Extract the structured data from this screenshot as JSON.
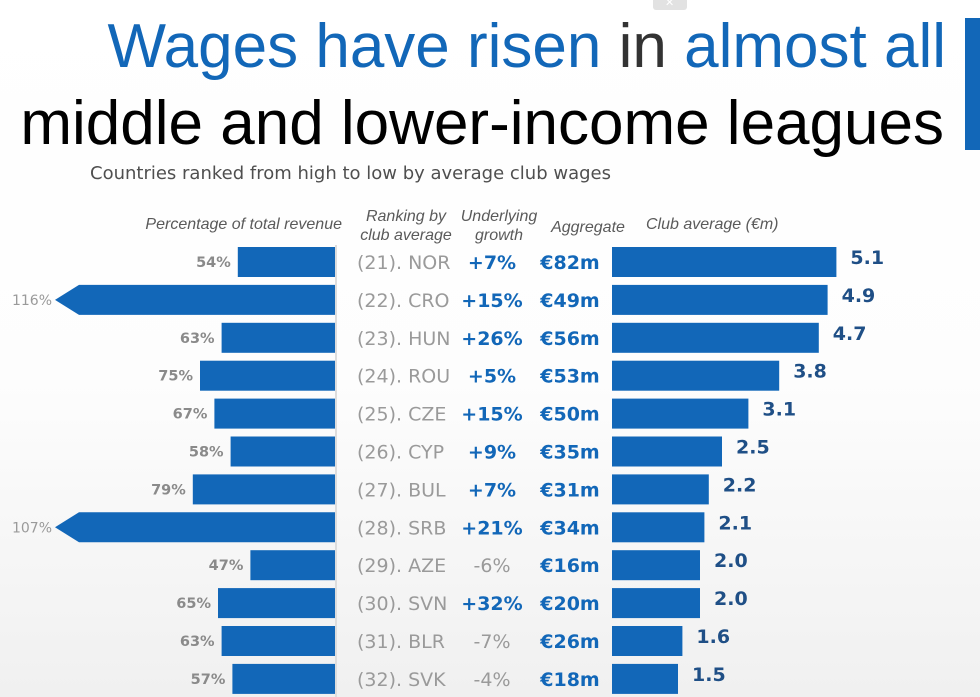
{
  "title": {
    "line1": [
      {
        "text": "Wages have risen",
        "highlight": true
      },
      {
        "text": " in ",
        "highlight": false
      },
      {
        "text": "almost all",
        "highlight": true
      }
    ],
    "line2": "middle and lower-income leagues"
  },
  "colors": {
    "accent": "#1267b8",
    "bar": "#1267b8",
    "title_text": "#333333",
    "muted_text": "#9a9a9a",
    "value_text": "#1f4f86"
  },
  "chart_data": {
    "type": "bar",
    "subtitle": "Countries ranked from high to low by average club wages",
    "column_headers": {
      "pct_revenue": "Percentage of total revenue",
      "ranking": "Ranking by club average",
      "growth": "Underlying growth",
      "aggregate": "Aggregate",
      "club_average": "Club average (€m)"
    },
    "categories": [
      "(21). NOR",
      "(22). CRO",
      "(23). HUN",
      "(24). ROU",
      "(25). CZE",
      "(26). CYP",
      "(27). BUL",
      "(28). SRB",
      "(29). AZE",
      "(30). SVN",
      "(31). BLR",
      "(32). SVK"
    ],
    "series": [
      {
        "name": "Percentage of total revenue",
        "values": [
          54,
          116,
          63,
          75,
          67,
          58,
          79,
          107,
          47,
          65,
          63,
          57
        ],
        "labels": [
          "54%",
          "116%",
          "63%",
          "75%",
          "67%",
          "58%",
          "79%",
          "107%",
          "47%",
          "65%",
          "63%",
          "57%"
        ]
      },
      {
        "name": "Club average (€m)",
        "values": [
          5.1,
          4.9,
          4.7,
          3.8,
          3.1,
          2.5,
          2.2,
          2.1,
          2.0,
          2.0,
          1.6,
          1.5
        ],
        "labels": [
          "5.1",
          "4.9",
          "4.7",
          "3.8",
          "3.1",
          "2.5",
          "2.2",
          "2.1",
          "2.0",
          "2.0",
          "1.6",
          "1.5"
        ]
      }
    ],
    "growth": [
      "+7%",
      "+15%",
      "+26%",
      "+5%",
      "+15%",
      "+9%",
      "+7%",
      "+21%",
      "-6%",
      "+32%",
      "-7%",
      "-4%"
    ],
    "aggregate": [
      "€82m",
      "€49m",
      "€56m",
      "€53m",
      "€50m",
      "€35m",
      "€31m",
      "€34m",
      "€16m",
      "€20m",
      "€26m",
      "€18m"
    ]
  }
}
